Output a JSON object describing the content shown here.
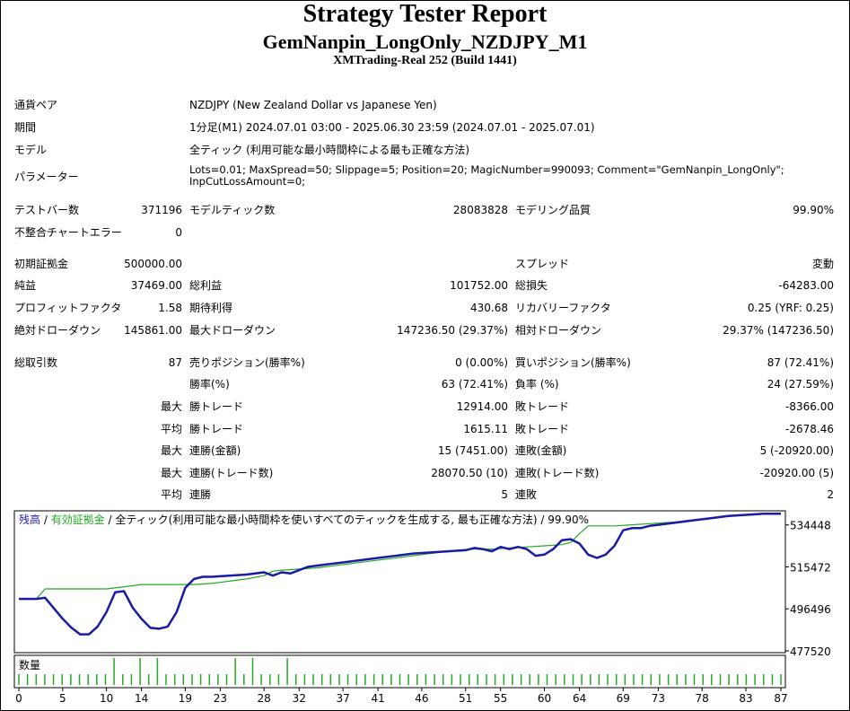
{
  "header": {
    "title": "Strategy Tester Report",
    "subtitle": "GemNanpin_LongOnly_NZDJPY_M1",
    "server": "XMTrading-Real 252 (Build 1441)"
  },
  "info": {
    "symbol_label": "通貨ペア",
    "symbol_value": "NZDJPY (New Zealand Dollar vs Japanese Yen)",
    "period_label": "期間",
    "period_value": "1分足(M1) 2024.07.01 03:00 - 2025.06.30 23:59 (2024.07.01 - 2025.07.01)",
    "model_label": "モデル",
    "model_value": "全ティック (利用可能な最小時間枠による最も正確な方法)",
    "params_label": "パラメーター",
    "params_line1": "Lots=0.01; MaxSpread=50; Slippage=5; Position=20; MagicNumber=990093; Comment=\"GemNanpin_LongOnly\";",
    "params_line2": "InpCutLossAmount=0;"
  },
  "stats": {
    "bars_label": "テストバー数",
    "bars_value": "371196",
    "ticks_label": "モデルティック数",
    "ticks_value": "28083828",
    "quality_label": "モデリング品質",
    "quality_value": "99.90%",
    "mismatch_label": "不整合チャートエラー",
    "mismatch_value": "0",
    "deposit_label": "初期証拠金",
    "deposit_value": "500000.00",
    "spread_label": "スプレッド",
    "spread_value": "変動",
    "netprofit_label": "純益",
    "netprofit_value": "37469.00",
    "grossprofit_label": "総利益",
    "grossprofit_value": "101752.00",
    "grossloss_label": "総損失",
    "grossloss_value": "-64283.00",
    "pf_label": "プロフィットファクタ",
    "pf_value": "1.58",
    "payoff_label": "期待利得",
    "payoff_value": "430.68",
    "rf_label": "リカバリーファクタ",
    "rf_value": "0.25 (YRF: 0.25)",
    "absdd_label": "絶対ドローダウン",
    "absdd_value": "145861.00",
    "maxdd_label": "最大ドローダウン",
    "maxdd_value": "147236.50 (29.37%)",
    "reldd_label": "相対ドローダウン",
    "reldd_value": "29.37% (147236.50)",
    "trades_label": "総取引数",
    "trades_value": "87",
    "short_label": "売りポジション(勝率%)",
    "short_value": "0 (0.00%)",
    "long_label": "買いポジション(勝率%)",
    "long_value": "87 (72.41%)",
    "winrate_label": "勝率(%)",
    "winrate_value": "63 (72.41%)",
    "lossrate_label": "負率 (%)",
    "lossrate_value": "24 (27.59%)",
    "max_prefix": "最大",
    "avg_prefix": "平均",
    "maxwin_label": "勝トレード",
    "maxwin_value": "12914.00",
    "maxloss_label": "敗トレード",
    "maxloss_value": "-8366.00",
    "avgwin_label": "勝トレード",
    "avgwin_value": "1615.11",
    "avgloss_label": "敗トレード",
    "avgloss_value": "-2678.46",
    "maxconswin_label": "連勝(金額)",
    "maxconswin_value": "15 (7451.00)",
    "maxconsloss_label": "連敗(金額)",
    "maxconsloss_value": "5 (-20920.00)",
    "maxconsprofit_label": "連勝(トレード数)",
    "maxconsprofit_value": "28070.50 (10)",
    "maxconslossamt_label": "連敗(トレード数)",
    "maxconslossamt_value": "-20920.00 (5)",
    "avgconswin_label": "連勝",
    "avgconswin_value": "5",
    "avgconsloss_label": "連敗",
    "avgconsloss_value": "2"
  },
  "chart_data": {
    "type": "line",
    "legend_balance": "残高",
    "legend_sep1": " / ",
    "legend_equity": "有効証拠金",
    "legend_rest": " / 全ティック(利用可能な最小時間枠を使いすべてのティックを生成する, 最も正確な方法) / 99.90%",
    "volume_label": "数量",
    "colors": {
      "balance": "#1a1aa6",
      "equity": "#22aa22",
      "volume": "#22aa22",
      "axis": "#000000"
    },
    "y_ticks": [
      "534448",
      "515472",
      "496496",
      "477520"
    ],
    "ylim": [
      477520,
      540000
    ],
    "x_ticks": [
      "0",
      "5",
      "10",
      "14",
      "19",
      "23",
      "28",
      "32",
      "37",
      "41",
      "46",
      "51",
      "55",
      "60",
      "64",
      "69",
      "73",
      "78",
      "83",
      "87"
    ],
    "xlim": [
      0,
      87
    ],
    "series": [
      {
        "name": "残高",
        "x": [
          0,
          2,
          3,
          5,
          6,
          7,
          8,
          9,
          10,
          11,
          12,
          13,
          14,
          15,
          16,
          17,
          18,
          19,
          20,
          21,
          22,
          24,
          26,
          28,
          29,
          30,
          31,
          32,
          33,
          35,
          37,
          39,
          41,
          43,
          45,
          47,
          49,
          51,
          52,
          53,
          54,
          55,
          56,
          57,
          58,
          59,
          60,
          61,
          62,
          63,
          64,
          65,
          66,
          67,
          68,
          69,
          70,
          71,
          72,
          73,
          75,
          77,
          79,
          81,
          83,
          85,
          87
        ],
        "y": [
          501000,
          501000,
          501500,
          492000,
          488000,
          485000,
          485000,
          488500,
          495000,
          504000,
          504500,
          497000,
          492000,
          488000,
          487500,
          488500,
          495000,
          506000,
          510000,
          511000,
          511000,
          511500,
          512000,
          513000,
          511500,
          513000,
          512500,
          514000,
          515500,
          516500,
          517500,
          518500,
          519500,
          520500,
          521500,
          522000,
          522500,
          523000,
          524000,
          523500,
          522500,
          524500,
          523500,
          524500,
          523500,
          520500,
          521000,
          523500,
          527500,
          528000,
          526000,
          521000,
          519500,
          521000,
          525000,
          532000,
          533000,
          533000,
          534000,
          534500,
          535500,
          536500,
          537500,
          538500,
          539000,
          539500,
          539500
        ]
      },
      {
        "name": "有効証拠金",
        "x": [
          0,
          2,
          3,
          4,
          6,
          8,
          10,
          12,
          14,
          16,
          18,
          20,
          22,
          24,
          26,
          28,
          29,
          30,
          32,
          34,
          36,
          38,
          40,
          42,
          44,
          46,
          48,
          50,
          52,
          54,
          56,
          58,
          60,
          62,
          63,
          64,
          65,
          66,
          67,
          68,
          70,
          72,
          74,
          76,
          78,
          80,
          82,
          84,
          86,
          87
        ],
        "y": [
          501000,
          501000,
          505500,
          505500,
          505500,
          505500,
          505500,
          506500,
          507500,
          507500,
          507500,
          507500,
          508000,
          509000,
          510000,
          511500,
          513500,
          514000,
          514500,
          515000,
          516000,
          517000,
          518000,
          519000,
          520000,
          521000,
          522000,
          523000,
          523500,
          523500,
          524000,
          524500,
          525000,
          525500,
          526500,
          530500,
          534000,
          534000,
          534000,
          534000,
          534500,
          535000,
          535500,
          536000,
          537000,
          538000,
          538500,
          539000,
          539500,
          539500
        ]
      }
    ],
    "volume": [
      1,
      1,
      1,
      1,
      1,
      1,
      1,
      1,
      1,
      1,
      1,
      2,
      1,
      1,
      2,
      1,
      2,
      1,
      1,
      1,
      1,
      1,
      1,
      1,
      1,
      2,
      1,
      2,
      1,
      1,
      1,
      2,
      1,
      1,
      1,
      1,
      1,
      1,
      1,
      1,
      1,
      1,
      1,
      1,
      1,
      1,
      1,
      1,
      1,
      1,
      1,
      1,
      1,
      1,
      1,
      1,
      1,
      1,
      1,
      1,
      1,
      1,
      1,
      1,
      1,
      1,
      1,
      1,
      1,
      1,
      1,
      1,
      1,
      1,
      1,
      1,
      1,
      1,
      1,
      1,
      1,
      1,
      1,
      1,
      1,
      1,
      1,
      1,
      1
    ]
  }
}
